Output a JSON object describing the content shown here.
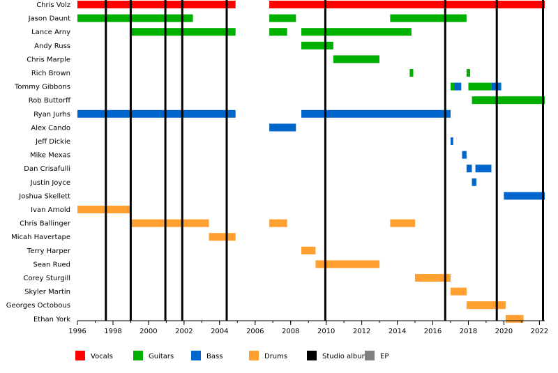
{
  "chart_data": {
    "type": "timeline",
    "x_range": [
      1996,
      2022.3
    ],
    "x_ticks": [
      1996,
      1998,
      2000,
      2002,
      2004,
      2006,
      2008,
      2010,
      2012,
      2014,
      2016,
      2018,
      2020,
      2022
    ],
    "grid": false,
    "legend_position": "bottom",
    "colors": {
      "Vocals": "#ff0000",
      "Guitars": "#00b000",
      "Bass": "#0066cc",
      "Drums": "#ffa030",
      "Studio album": "#000000",
      "EP": "#808080"
    },
    "legend": [
      "Vocals",
      "Guitars",
      "Bass",
      "Drums",
      "Studio album",
      "EP"
    ],
    "studio_albums": [
      1997.6,
      1999.0,
      2000.95,
      2001.9,
      2004.4,
      2009.95,
      2016.7,
      2019.6,
      2022.2
    ],
    "members": [
      {
        "name": "Chris Volz",
        "periods": [
          {
            "role": "Vocals",
            "start": 1996.0,
            "end": 2004.9
          },
          {
            "role": "Vocals",
            "start": 2006.8,
            "end": 2022.3
          }
        ]
      },
      {
        "name": "Jason Daunt",
        "periods": [
          {
            "role": "Guitars",
            "start": 1996.0,
            "end": 2002.5
          },
          {
            "role": "Guitars",
            "start": 2006.8,
            "end": 2008.3
          },
          {
            "role": "Guitars",
            "start": 2013.6,
            "end": 2017.9
          }
        ]
      },
      {
        "name": "Lance Arny",
        "periods": [
          {
            "role": "Guitars",
            "start": 1999.0,
            "end": 2004.9
          },
          {
            "role": "Guitars",
            "start": 2006.8,
            "end": 2007.8
          },
          {
            "role": "Guitars",
            "start": 2008.6,
            "end": 2014.8
          }
        ]
      },
      {
        "name": "Andy Russ",
        "periods": [
          {
            "role": "Guitars",
            "start": 2008.6,
            "end": 2010.4
          }
        ]
      },
      {
        "name": "Chris Marple",
        "periods": [
          {
            "role": "Guitars",
            "start": 2010.4,
            "end": 2013.0
          }
        ]
      },
      {
        "name": "Rich Brown",
        "periods": [
          {
            "role": "Guitars",
            "start": 2014.7,
            "end": 2014.9
          },
          {
            "role": "Guitars",
            "start": 2017.9,
            "end": 2018.1
          }
        ]
      },
      {
        "name": "Tommy Gibbons",
        "periods": [
          {
            "role": "Guitars",
            "start": 2017.0,
            "end": 2017.2
          },
          {
            "role": "Bass",
            "start": 2017.2,
            "end": 2017.6
          },
          {
            "role": "Guitars",
            "start": 2018.0,
            "end": 2019.3
          },
          {
            "role": "Bass",
            "start": 2019.3,
            "end": 2019.85
          }
        ]
      },
      {
        "name": "Rob Buttorff",
        "periods": [
          {
            "role": "Guitars",
            "start": 2018.2,
            "end": 2022.3
          }
        ]
      },
      {
        "name": "Ryan Jurhs",
        "periods": [
          {
            "role": "Bass",
            "start": 1996.0,
            "end": 2004.9
          },
          {
            "role": "Bass",
            "start": 2008.6,
            "end": 2017.0
          }
        ]
      },
      {
        "name": "Alex Cando",
        "periods": [
          {
            "role": "Bass",
            "start": 2006.8,
            "end": 2008.3
          }
        ]
      },
      {
        "name": "Jeff Dickie",
        "periods": [
          {
            "role": "Bass",
            "start": 2017.0,
            "end": 2017.15
          }
        ]
      },
      {
        "name": "Mike Mexas",
        "periods": [
          {
            "role": "Bass",
            "start": 2017.65,
            "end": 2017.9
          }
        ]
      },
      {
        "name": "Dan Crisafulli",
        "periods": [
          {
            "role": "Bass",
            "start": 2017.9,
            "end": 2018.2
          },
          {
            "role": "Bass",
            "start": 2018.4,
            "end": 2019.3
          }
        ]
      },
      {
        "name": "Justin Joyce",
        "periods": [
          {
            "role": "Bass",
            "start": 2018.2,
            "end": 2018.45
          }
        ]
      },
      {
        "name": "Joshua Skellett",
        "periods": [
          {
            "role": "Bass",
            "start": 2020.0,
            "end": 2022.3
          }
        ]
      },
      {
        "name": "Ivan Arnold",
        "periods": [
          {
            "role": "Drums",
            "start": 1996.0,
            "end": 1999.0
          }
        ]
      },
      {
        "name": "Chris Ballinger",
        "periods": [
          {
            "role": "Drums",
            "start": 1999.0,
            "end": 2003.4
          },
          {
            "role": "Drums",
            "start": 2006.8,
            "end": 2007.8
          },
          {
            "role": "Drums",
            "start": 2013.6,
            "end": 2015.0
          }
        ]
      },
      {
        "name": "Micah Havertape",
        "periods": [
          {
            "role": "Drums",
            "start": 2003.4,
            "end": 2004.9
          }
        ]
      },
      {
        "name": "Terry Harper",
        "periods": [
          {
            "role": "Drums",
            "start": 2008.6,
            "end": 2009.4
          }
        ]
      },
      {
        "name": "Sean Rued",
        "periods": [
          {
            "role": "Drums",
            "start": 2009.4,
            "end": 2013.0
          }
        ]
      },
      {
        "name": "Corey Sturgill",
        "periods": [
          {
            "role": "Drums",
            "start": 2015.0,
            "end": 2017.0
          }
        ]
      },
      {
        "name": "Skyler Martin",
        "periods": [
          {
            "role": "Drums",
            "start": 2017.0,
            "end": 2017.9
          }
        ]
      },
      {
        "name": "Georges Octobous",
        "periods": [
          {
            "role": "Drums",
            "start": 2017.9,
            "end": 2020.1
          }
        ]
      },
      {
        "name": "Ethan York",
        "periods": [
          {
            "role": "Drums",
            "start": 2020.1,
            "end": 2021.1
          }
        ]
      }
    ]
  }
}
